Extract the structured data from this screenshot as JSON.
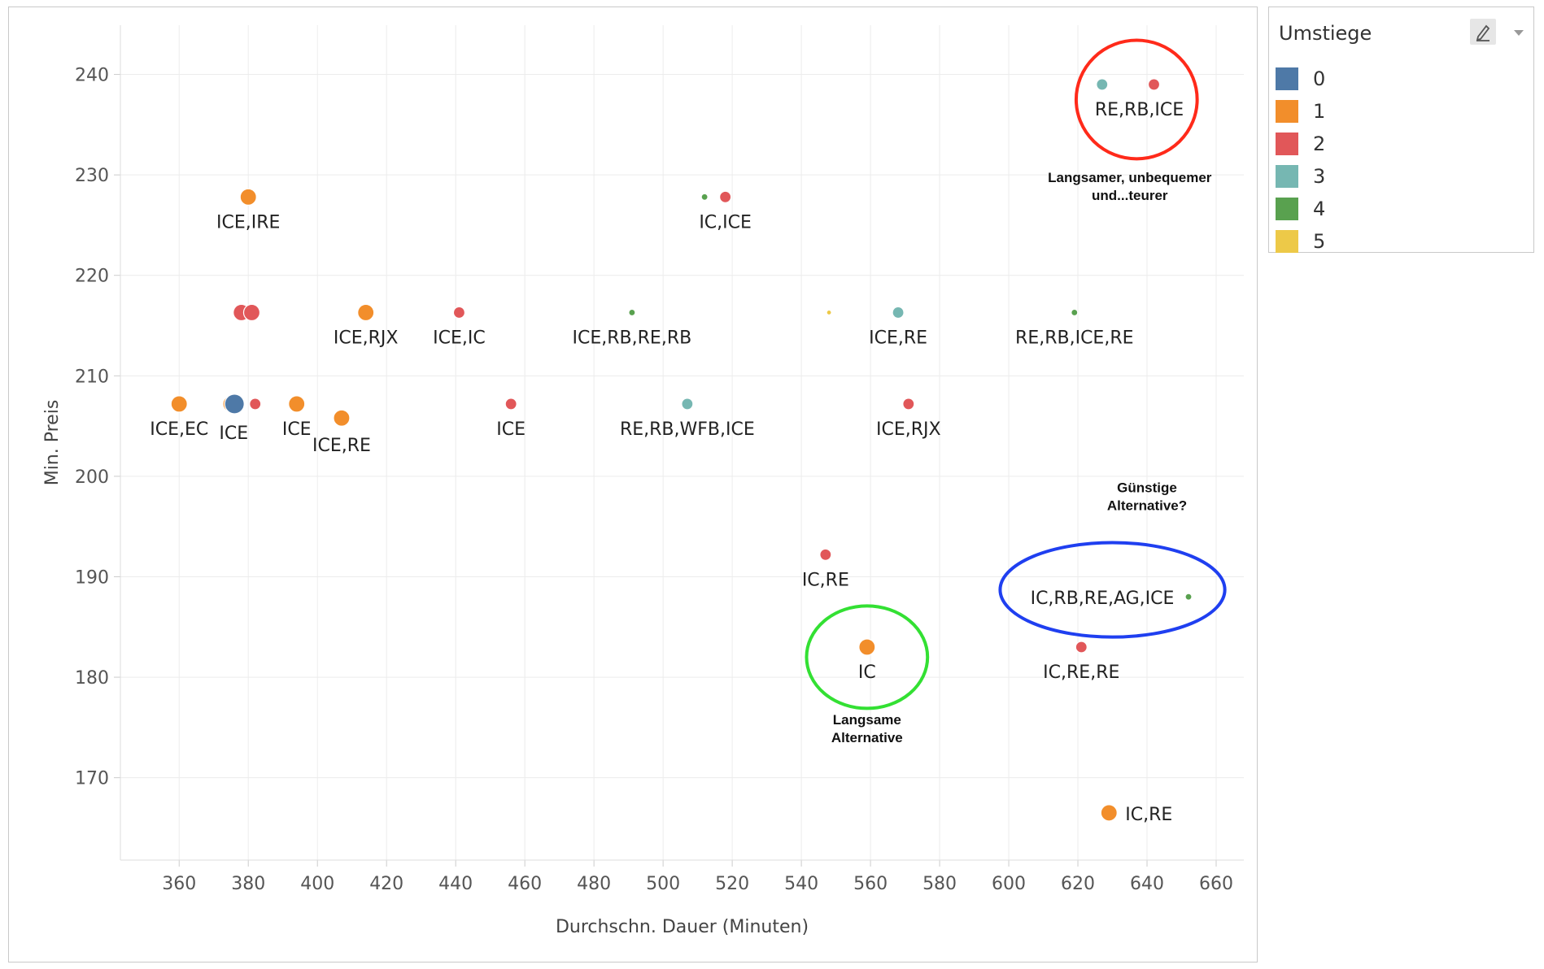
{
  "chart_data": {
    "type": "scatter",
    "xlabel": "Durchschn. Dauer (Minuten)",
    "ylabel": "Min. Preis",
    "xlim": [
      343,
      668
    ],
    "ylim": [
      161.8,
      244.9
    ],
    "x_ticks": [
      360,
      380,
      400,
      420,
      440,
      460,
      480,
      500,
      520,
      540,
      560,
      580,
      600,
      620,
      640,
      660
    ],
    "y_ticks": [
      170,
      180,
      190,
      200,
      210,
      220,
      230,
      240
    ],
    "grid": true,
    "legend": {
      "title": "Umstiege",
      "placement": "right",
      "items": [
        {
          "label": "0",
          "color": "#4e79a7"
        },
        {
          "label": "1",
          "color": "#f28e2b"
        },
        {
          "label": "2",
          "color": "#e15759"
        },
        {
          "label": "3",
          "color": "#76b7b2"
        },
        {
          "label": "4",
          "color": "#59a14f"
        },
        {
          "label": "5",
          "color": "#edc948"
        }
      ]
    },
    "points": [
      {
        "x": 380,
        "y": 227.8,
        "umstiege": "1",
        "label": "ICE,IRE",
        "size": "large"
      },
      {
        "x": 378,
        "y": 216.3,
        "umstiege": "2",
        "label": "",
        "size": "large"
      },
      {
        "x": 381,
        "y": 216.3,
        "umstiege": "2",
        "label": "",
        "size": "large"
      },
      {
        "x": 414,
        "y": 216.3,
        "umstiege": "1",
        "label": "ICE,RJX",
        "size": "large"
      },
      {
        "x": 441,
        "y": 216.3,
        "umstiege": "2",
        "label": "ICE,IC",
        "size": "medium"
      },
      {
        "x": 360,
        "y": 207.2,
        "umstiege": "1",
        "label": "ICE,EC",
        "size": "large"
      },
      {
        "x": 375,
        "y": 207.2,
        "umstiege": "1",
        "label": "",
        "size": "large"
      },
      {
        "x": 376,
        "y": 207.2,
        "umstiege": "0",
        "label": "ICE",
        "size": "xlarge"
      },
      {
        "x": 382,
        "y": 207.2,
        "umstiege": "2",
        "label": "",
        "size": "medium"
      },
      {
        "x": 394,
        "y": 207.2,
        "umstiege": "1",
        "label": "ICE",
        "size": "large"
      },
      {
        "x": 407,
        "y": 205.8,
        "umstiege": "1",
        "label": "ICE,RE",
        "size": "large"
      },
      {
        "x": 456,
        "y": 207.2,
        "umstiege": "2",
        "label": "ICE",
        "size": "medium"
      },
      {
        "x": 491,
        "y": 216.3,
        "umstiege": "4",
        "label": "ICE,RB,RE,RB",
        "size": "small"
      },
      {
        "x": 507,
        "y": 207.2,
        "umstiege": "3",
        "label": "RE,RB,WFB,ICE",
        "size": "medium"
      },
      {
        "x": 512,
        "y": 227.8,
        "umstiege": "4",
        "label": "",
        "size": "small"
      },
      {
        "x": 518,
        "y": 227.8,
        "umstiege": "2",
        "label": "IC,ICE",
        "size": "medium"
      },
      {
        "x": 548,
        "y": 216.3,
        "umstiege": "5",
        "label": "",
        "size": "tiny"
      },
      {
        "x": 568,
        "y": 216.3,
        "umstiege": "3",
        "label": "ICE,RE",
        "size": "medium"
      },
      {
        "x": 571,
        "y": 207.2,
        "umstiege": "2",
        "label": "ICE,RJX",
        "size": "medium"
      },
      {
        "x": 619,
        "y": 216.3,
        "umstiege": "4",
        "label": "RE,RB,ICE,RE",
        "size": "small"
      },
      {
        "x": 547,
        "y": 192.2,
        "umstiege": "2",
        "label": "IC,RE",
        "size": "medium"
      },
      {
        "x": 559,
        "y": 183.0,
        "umstiege": "1",
        "label": "IC",
        "size": "large"
      },
      {
        "x": 652,
        "y": 188.0,
        "umstiege": "4",
        "label": "IC,RB,RE,AG,ICE",
        "size": "small"
      },
      {
        "x": 621,
        "y": 183.0,
        "umstiege": "2",
        "label": "IC,RE,RE",
        "size": "medium"
      },
      {
        "x": 629,
        "y": 166.5,
        "umstiege": "1",
        "label": "IC,RE",
        "size": "large"
      },
      {
        "x": 627,
        "y": 239.0,
        "umstiege": "3",
        "label": "",
        "size": "medium"
      },
      {
        "x": 642,
        "y": 239.0,
        "umstiege": "2",
        "label": "RE,RB,ICE",
        "size": "medium"
      }
    ],
    "annotations": [
      {
        "shape": "ellipse",
        "color": "#ff2a1a",
        "cx": 637,
        "cy": 237.5,
        "rx": 17.5,
        "ry": 5.9,
        "lines": [
          "Langsamer, unbequemer",
          "und...teurer"
        ],
        "text_x": 635,
        "text_y": 229.3
      },
      {
        "shape": "ellipse",
        "color": "#1f3ff0",
        "cx": 630,
        "cy": 188.7,
        "rx": 32.5,
        "ry": 4.7,
        "lines": [
          "Günstige",
          "Alternative?"
        ],
        "text_x": 640,
        "text_y": 198.4
      },
      {
        "shape": "ellipse",
        "color": "#33e033",
        "cx": 559,
        "cy": 182.0,
        "rx": 17.5,
        "ry": 5.1,
        "lines": [
          "Langsame",
          "Alternative"
        ],
        "text_x": 559,
        "text_y": 175.3
      }
    ]
  }
}
